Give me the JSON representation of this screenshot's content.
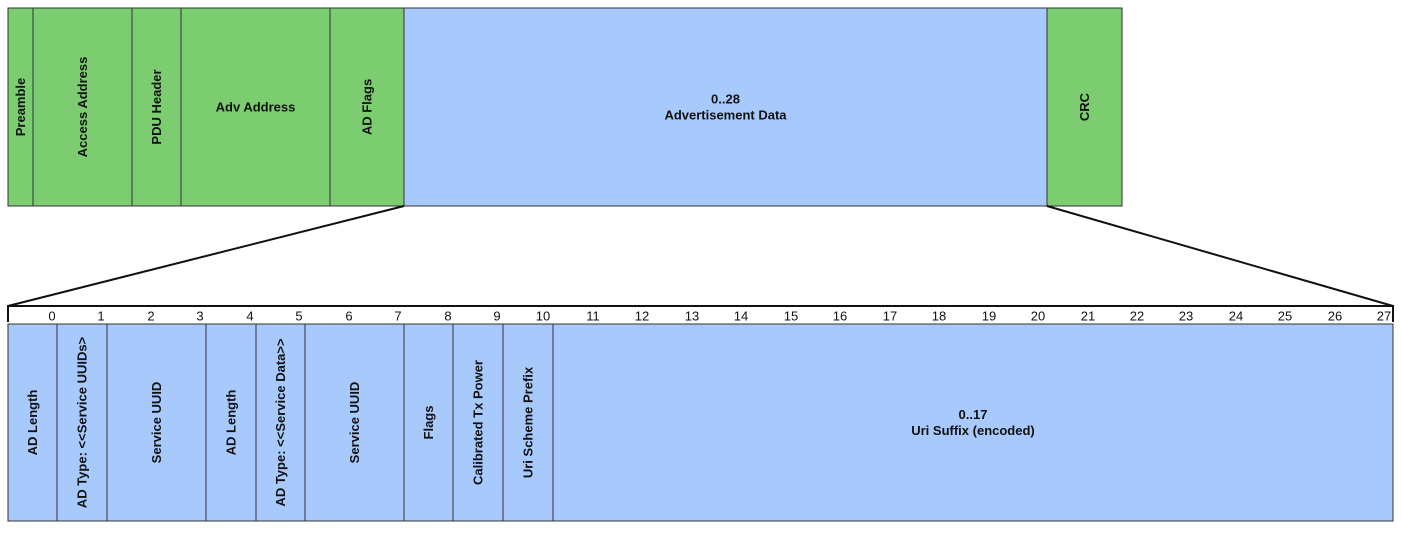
{
  "colors": {
    "green": "#7bcd70",
    "blue": "#a8c9fc",
    "border": "#333333",
    "line": "#111111"
  },
  "packet": {
    "fields": [
      {
        "name": "preamble",
        "label": "Preamble",
        "vertical": true,
        "color": "green"
      },
      {
        "name": "access-address",
        "label": "Access Address",
        "vertical": true,
        "color": "green"
      },
      {
        "name": "pdu-header",
        "label": "PDU Header",
        "vertical": true,
        "color": "green"
      },
      {
        "name": "adv-address",
        "label": "Adv Address",
        "vertical": false,
        "color": "green"
      },
      {
        "name": "ad-flags",
        "label": "AD Flags",
        "vertical": true,
        "color": "green"
      },
      {
        "name": "advertisement-data",
        "label": "0..28",
        "label2": "Advertisement Data",
        "vertical": false,
        "color": "blue"
      },
      {
        "name": "crc",
        "label": "CRC",
        "vertical": true,
        "color": "green"
      }
    ]
  },
  "bytes": {
    "ticks": [
      "0",
      "1",
      "2",
      "3",
      "4",
      "5",
      "6",
      "7",
      "8",
      "9",
      "10",
      "11",
      "12",
      "13",
      "14",
      "15",
      "16",
      "17",
      "18",
      "19",
      "20",
      "21",
      "22",
      "23",
      "24",
      "25",
      "26",
      "27"
    ],
    "fields": [
      {
        "name": "ad-length-1",
        "label": "AD Length",
        "vertical": true
      },
      {
        "name": "ad-type-service-uuids",
        "label": "AD Type: <<Service UUIDs>",
        "vertical": true
      },
      {
        "name": "service-uuid-1",
        "label": "Service UUID",
        "vertical": true
      },
      {
        "name": "ad-length-2",
        "label": "AD Length",
        "vertical": true
      },
      {
        "name": "ad-type-service-data",
        "label": "AD Type: <<Service Data>>",
        "vertical": true
      },
      {
        "name": "service-uuid-2",
        "label": "Service UUID",
        "vertical": true
      },
      {
        "name": "flags",
        "label": "Flags",
        "vertical": true
      },
      {
        "name": "calibrated-tx-power",
        "label": "Calibrated Tx Power",
        "vertical": true
      },
      {
        "name": "uri-scheme-prefix",
        "label": "Uri Scheme Prefix",
        "vertical": true
      },
      {
        "name": "uri-suffix",
        "label": "0..17",
        "label2": "Uri Suffix (encoded)",
        "vertical": false
      }
    ]
  }
}
